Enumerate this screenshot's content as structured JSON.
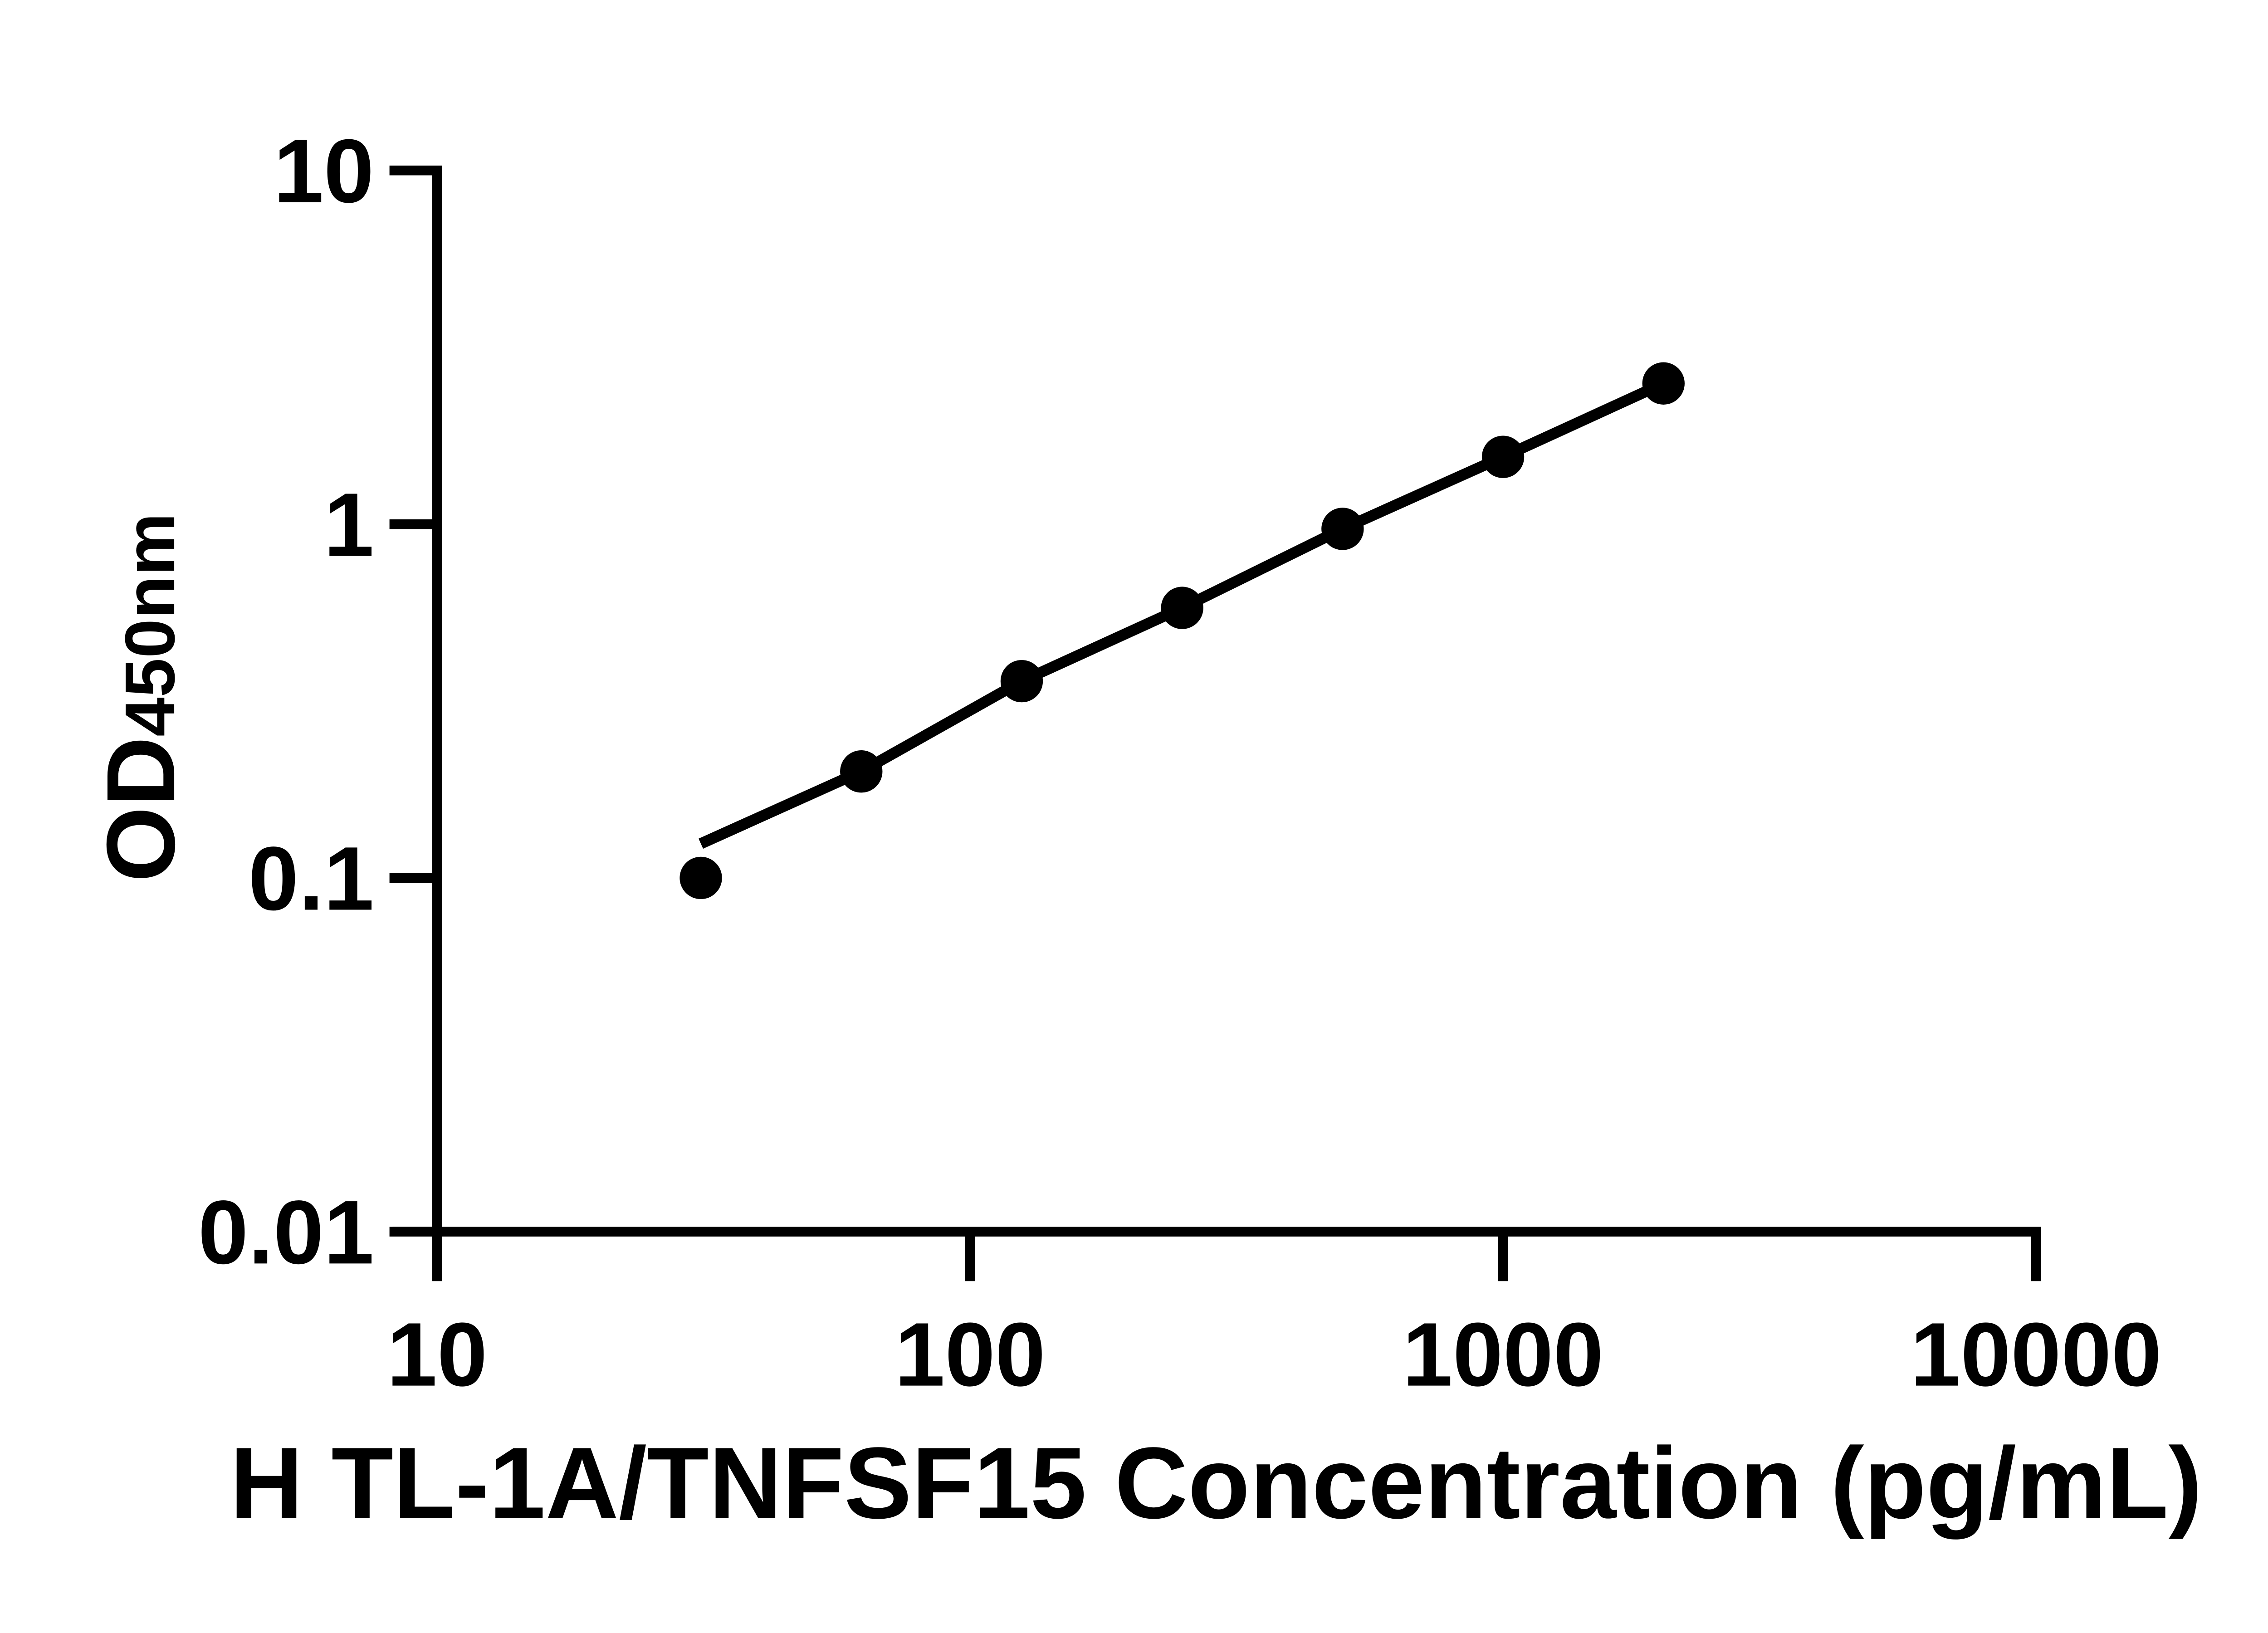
{
  "chart_data": {
    "type": "scatter",
    "title": "",
    "xlabel": "H TL-1A/TNFSF15 Concentration (pg/mL)",
    "ylabel": {
      "main": "OD",
      "sub": "450nm"
    },
    "x_scale": "log10",
    "y_scale": "log10",
    "xlim": [
      10,
      10000
    ],
    "ylim": [
      0.01,
      10
    ],
    "grid": false,
    "legend": null,
    "x_ticks": {
      "values": [
        10,
        100,
        1000,
        10000
      ],
      "labels": [
        "10",
        "100",
        "1000",
        "10000"
      ]
    },
    "y_ticks": {
      "values": [
        10,
        1,
        0.1,
        0.01
      ],
      "labels": [
        "10",
        "1",
        "0.1",
        "0.01"
      ]
    },
    "series": [
      {
        "name": "standard curve points",
        "marker": "circle",
        "marker_color": "#000000",
        "x": [
          31.25,
          62.5,
          125,
          250,
          500,
          1000,
          2000
        ],
        "y": [
          0.1,
          0.2,
          0.36,
          0.58,
          0.97,
          1.55,
          2.5
        ]
      }
    ],
    "trend_line": {
      "color": "#000000",
      "x": [
        31.25,
        62.5,
        125,
        250,
        500,
        1000,
        2000
      ],
      "y": [
        0.125,
        0.2,
        0.36,
        0.58,
        0.97,
        1.55,
        2.5
      ]
    },
    "colors": {
      "axis": "#000000",
      "background": "#ffffff",
      "data": "#000000"
    }
  }
}
